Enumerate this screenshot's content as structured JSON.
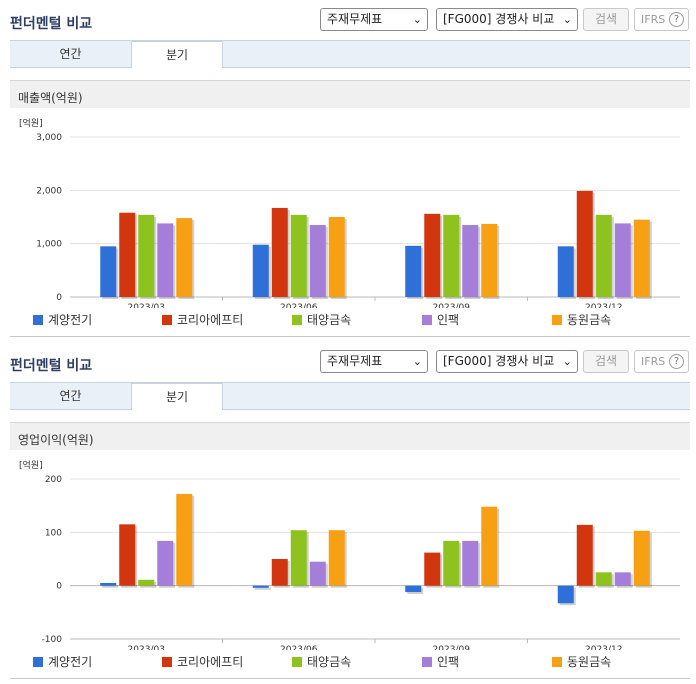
{
  "panels": [
    {
      "title": "펀더멘털 비교",
      "select_statement": "주재무제표",
      "select_compare": "[FG000] 경쟁사 비교",
      "search_label": "검색",
      "ifrs_label": "IFRS",
      "help_label": "?",
      "tabs": [
        {
          "label": "연간",
          "active": false
        },
        {
          "label": "분기",
          "active": true
        }
      ],
      "section_title": "매출액(억원)"
    },
    {
      "title": "펀더멘털 비교",
      "select_statement": "주재무제표",
      "select_compare": "[FG000] 경쟁사 비교",
      "search_label": "검색",
      "ifrs_label": "IFRS",
      "help_label": "?",
      "tabs": [
        {
          "label": "연간",
          "active": false
        },
        {
          "label": "분기",
          "active": true
        }
      ],
      "section_title": "영업이익(억원)"
    }
  ],
  "chart_data": [
    {
      "type": "bar",
      "title": "매출액(억원)",
      "unit_label": "[억원]",
      "categories": [
        "2023/03",
        "2023/06",
        "2023/09",
        "2023/12"
      ],
      "ylim": [
        0,
        3000
      ],
      "yticks": [
        0,
        1000,
        2000,
        3000
      ],
      "ytick_labels": [
        "0",
        "1,000",
        "2,000",
        "3,000"
      ],
      "grid": true,
      "legend_position": "bottom",
      "series": [
        {
          "name": "계양전기",
          "color": "#2e6fd8",
          "values": [
            950,
            980,
            960,
            950
          ]
        },
        {
          "name": "코리아에프티",
          "color": "#d2360f",
          "values": [
            1580,
            1670,
            1560,
            1990
          ]
        },
        {
          "name": "태양금속",
          "color": "#8dc21f",
          "values": [
            1540,
            1540,
            1540,
            1540
          ]
        },
        {
          "name": "인팩",
          "color": "#a57ed9",
          "values": [
            1380,
            1350,
            1350,
            1380
          ]
        },
        {
          "name": "동원금속",
          "color": "#f7a014",
          "values": [
            1480,
            1500,
            1370,
            1450
          ]
        }
      ]
    },
    {
      "type": "bar",
      "title": "영업이익(억원)",
      "unit_label": "[억원]",
      "categories": [
        "2023/03",
        "2023/06",
        "2023/09",
        "2023/12"
      ],
      "ylim": [
        -100,
        200
      ],
      "yticks": [
        -100,
        0,
        100,
        200
      ],
      "ytick_labels": [
        "-100",
        "0",
        "100",
        "200"
      ],
      "grid": true,
      "legend_position": "bottom",
      "series": [
        {
          "name": "계양전기",
          "color": "#2e6fd8",
          "values": [
            5,
            -4,
            -12,
            -33
          ]
        },
        {
          "name": "코리아에프티",
          "color": "#d2360f",
          "values": [
            115,
            50,
            62,
            114
          ]
        },
        {
          "name": "태양금속",
          "color": "#8dc21f",
          "values": [
            11,
            104,
            84,
            25
          ]
        },
        {
          "name": "인팩",
          "color": "#a57ed9",
          "values": [
            84,
            45,
            84,
            25
          ]
        },
        {
          "name": "동원금속",
          "color": "#f7a014",
          "values": [
            172,
            104,
            148,
            103
          ]
        }
      ]
    }
  ]
}
